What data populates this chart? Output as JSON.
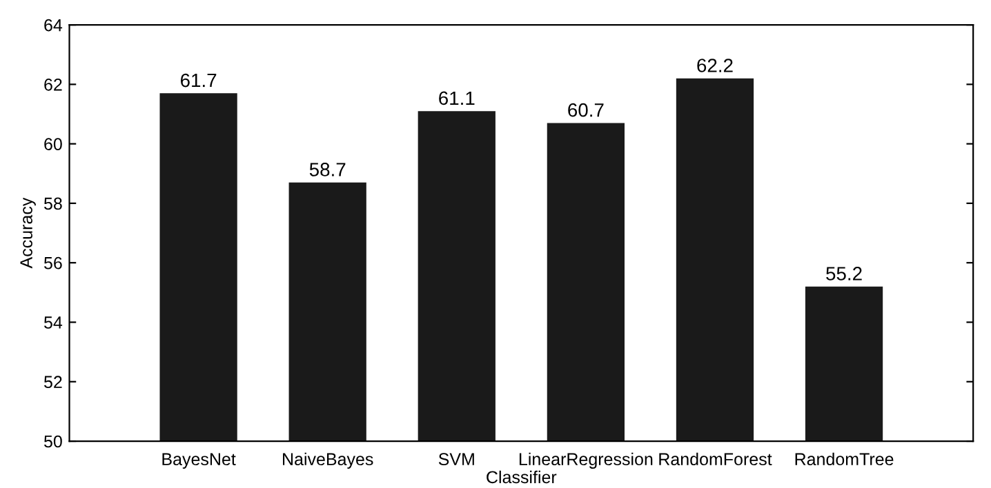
{
  "chart_data": {
    "type": "bar",
    "xlabel": "Classifier",
    "ylabel": "Accuracy",
    "categories": [
      "BayesNet",
      "NaiveBayes",
      "SVM",
      "LinearRegression",
      "RandomForest",
      "RandomTree"
    ],
    "values": [
      61.7,
      58.7,
      61.1,
      60.7,
      62.2,
      55.2
    ],
    "color": "#1a1a1a",
    "ylim": [
      50,
      64
    ],
    "yticks": [
      50,
      52,
      54,
      56,
      58,
      60,
      62,
      64
    ],
    "grid": false,
    "data_labels": true,
    "legend": false
  }
}
